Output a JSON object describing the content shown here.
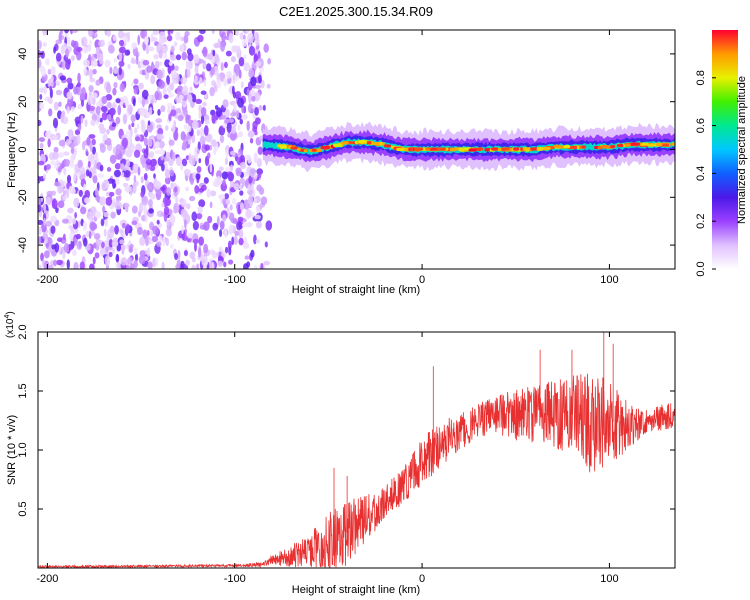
{
  "title": "C2E1.2025.300.15.34.R09",
  "chart_data": [
    {
      "type": "heatmap",
      "name": "spectrogram",
      "xlabel": "Height of straight line (km)",
      "ylabel": "Frequency (Hz)",
      "xlim": [
        -205,
        135
      ],
      "ylim": [
        -50,
        50
      ],
      "xticks": [
        -200,
        -100,
        0,
        100
      ],
      "yticks": [
        -40,
        -20,
        0,
        20,
        40
      ],
      "noise_region_x": [
        -205,
        -85
      ],
      "signal_region_x": [
        -85,
        135
      ],
      "signal_frequency_track": [
        {
          "x": -85,
          "y": 2
        },
        {
          "x": -70,
          "y": 1
        },
        {
          "x": -60,
          "y": -1
        },
        {
          "x": -50,
          "y": 1
        },
        {
          "x": -40,
          "y": 3
        },
        {
          "x": -30,
          "y": 3
        },
        {
          "x": -20,
          "y": 2
        },
        {
          "x": -10,
          "y": 0
        },
        {
          "x": 0,
          "y": 0
        },
        {
          "x": 20,
          "y": 0
        },
        {
          "x": 40,
          "y": 0
        },
        {
          "x": 60,
          "y": 0
        },
        {
          "x": 70,
          "y": 1
        },
        {
          "x": 80,
          "y": 1
        },
        {
          "x": 100,
          "y": 1
        },
        {
          "x": 110,
          "y": 2
        },
        {
          "x": 135,
          "y": 2
        }
      ],
      "colorbar": {
        "label": "Normalized spectral amplitude",
        "range": [
          0,
          1
        ],
        "ticks": [
          "0.0",
          "0.2",
          "0.4",
          "0.6",
          "0.8"
        ],
        "colormap": [
          "#ffffff",
          "#e0c0ff",
          "#9a40ff",
          "#4b18e8",
          "#1060ff",
          "#00c8ff",
          "#00e890",
          "#40f000",
          "#e8f000",
          "#ff9a00",
          "#ff0030"
        ]
      }
    },
    {
      "type": "line",
      "name": "snr",
      "xlabel": "Height of straight line (km)",
      "ylabel": "SNR (10 * v/v)",
      "scale_label": "(x10",
      "scale_exponent": "4",
      "scale_close": ")",
      "xlim": [
        -205,
        135
      ],
      "ylim": [
        0,
        2.0
      ],
      "xticks": [
        -200,
        -100,
        0,
        100
      ],
      "yticks": [
        0.5,
        1.0,
        1.5,
        2.0
      ],
      "ytick_labels": [
        "0.5",
        "1.0",
        "1.5",
        "2.0"
      ],
      "color": "#e83030",
      "envelope": [
        {
          "x": -205,
          "base": 0.01,
          "amp": 0.01
        },
        {
          "x": -100,
          "base": 0.02,
          "amp": 0.01
        },
        {
          "x": -85,
          "base": 0.03,
          "amp": 0.02
        },
        {
          "x": -78,
          "base": 0.08,
          "amp": 0.06
        },
        {
          "x": -65,
          "base": 0.12,
          "amp": 0.12
        },
        {
          "x": -50,
          "base": 0.22,
          "amp": 0.25
        },
        {
          "x": -40,
          "base": 0.3,
          "amp": 0.28
        },
        {
          "x": -30,
          "base": 0.42,
          "amp": 0.2
        },
        {
          "x": -20,
          "base": 0.55,
          "amp": 0.15
        },
        {
          "x": -10,
          "base": 0.7,
          "amp": 0.15
        },
        {
          "x": 0,
          "base": 0.9,
          "amp": 0.2
        },
        {
          "x": 10,
          "base": 1.05,
          "amp": 0.2
        },
        {
          "x": 20,
          "base": 1.15,
          "amp": 0.18
        },
        {
          "x": 30,
          "base": 1.25,
          "amp": 0.15
        },
        {
          "x": 40,
          "base": 1.3,
          "amp": 0.16
        },
        {
          "x": 50,
          "base": 1.3,
          "amp": 0.22
        },
        {
          "x": 60,
          "base": 1.3,
          "amp": 0.25
        },
        {
          "x": 70,
          "base": 1.3,
          "amp": 0.3
        },
        {
          "x": 80,
          "base": 1.3,
          "amp": 0.35
        },
        {
          "x": 90,
          "base": 1.25,
          "amp": 0.45
        },
        {
          "x": 100,
          "base": 1.25,
          "amp": 0.4
        },
        {
          "x": 110,
          "base": 1.2,
          "amp": 0.2
        },
        {
          "x": 120,
          "base": 1.25,
          "amp": 0.1
        },
        {
          "x": 135,
          "base": 1.3,
          "amp": 0.12
        }
      ],
      "spikes": [
        {
          "x": -47,
          "y": 0.85
        },
        {
          "x": -40,
          "y": 0.78
        },
        {
          "x": 6,
          "y": 1.71
        },
        {
          "x": 63,
          "y": 1.85
        },
        {
          "x": 80,
          "y": 1.85
        },
        {
          "x": 97,
          "y": 2.0
        },
        {
          "x": 102,
          "y": 1.9
        }
      ]
    }
  ]
}
